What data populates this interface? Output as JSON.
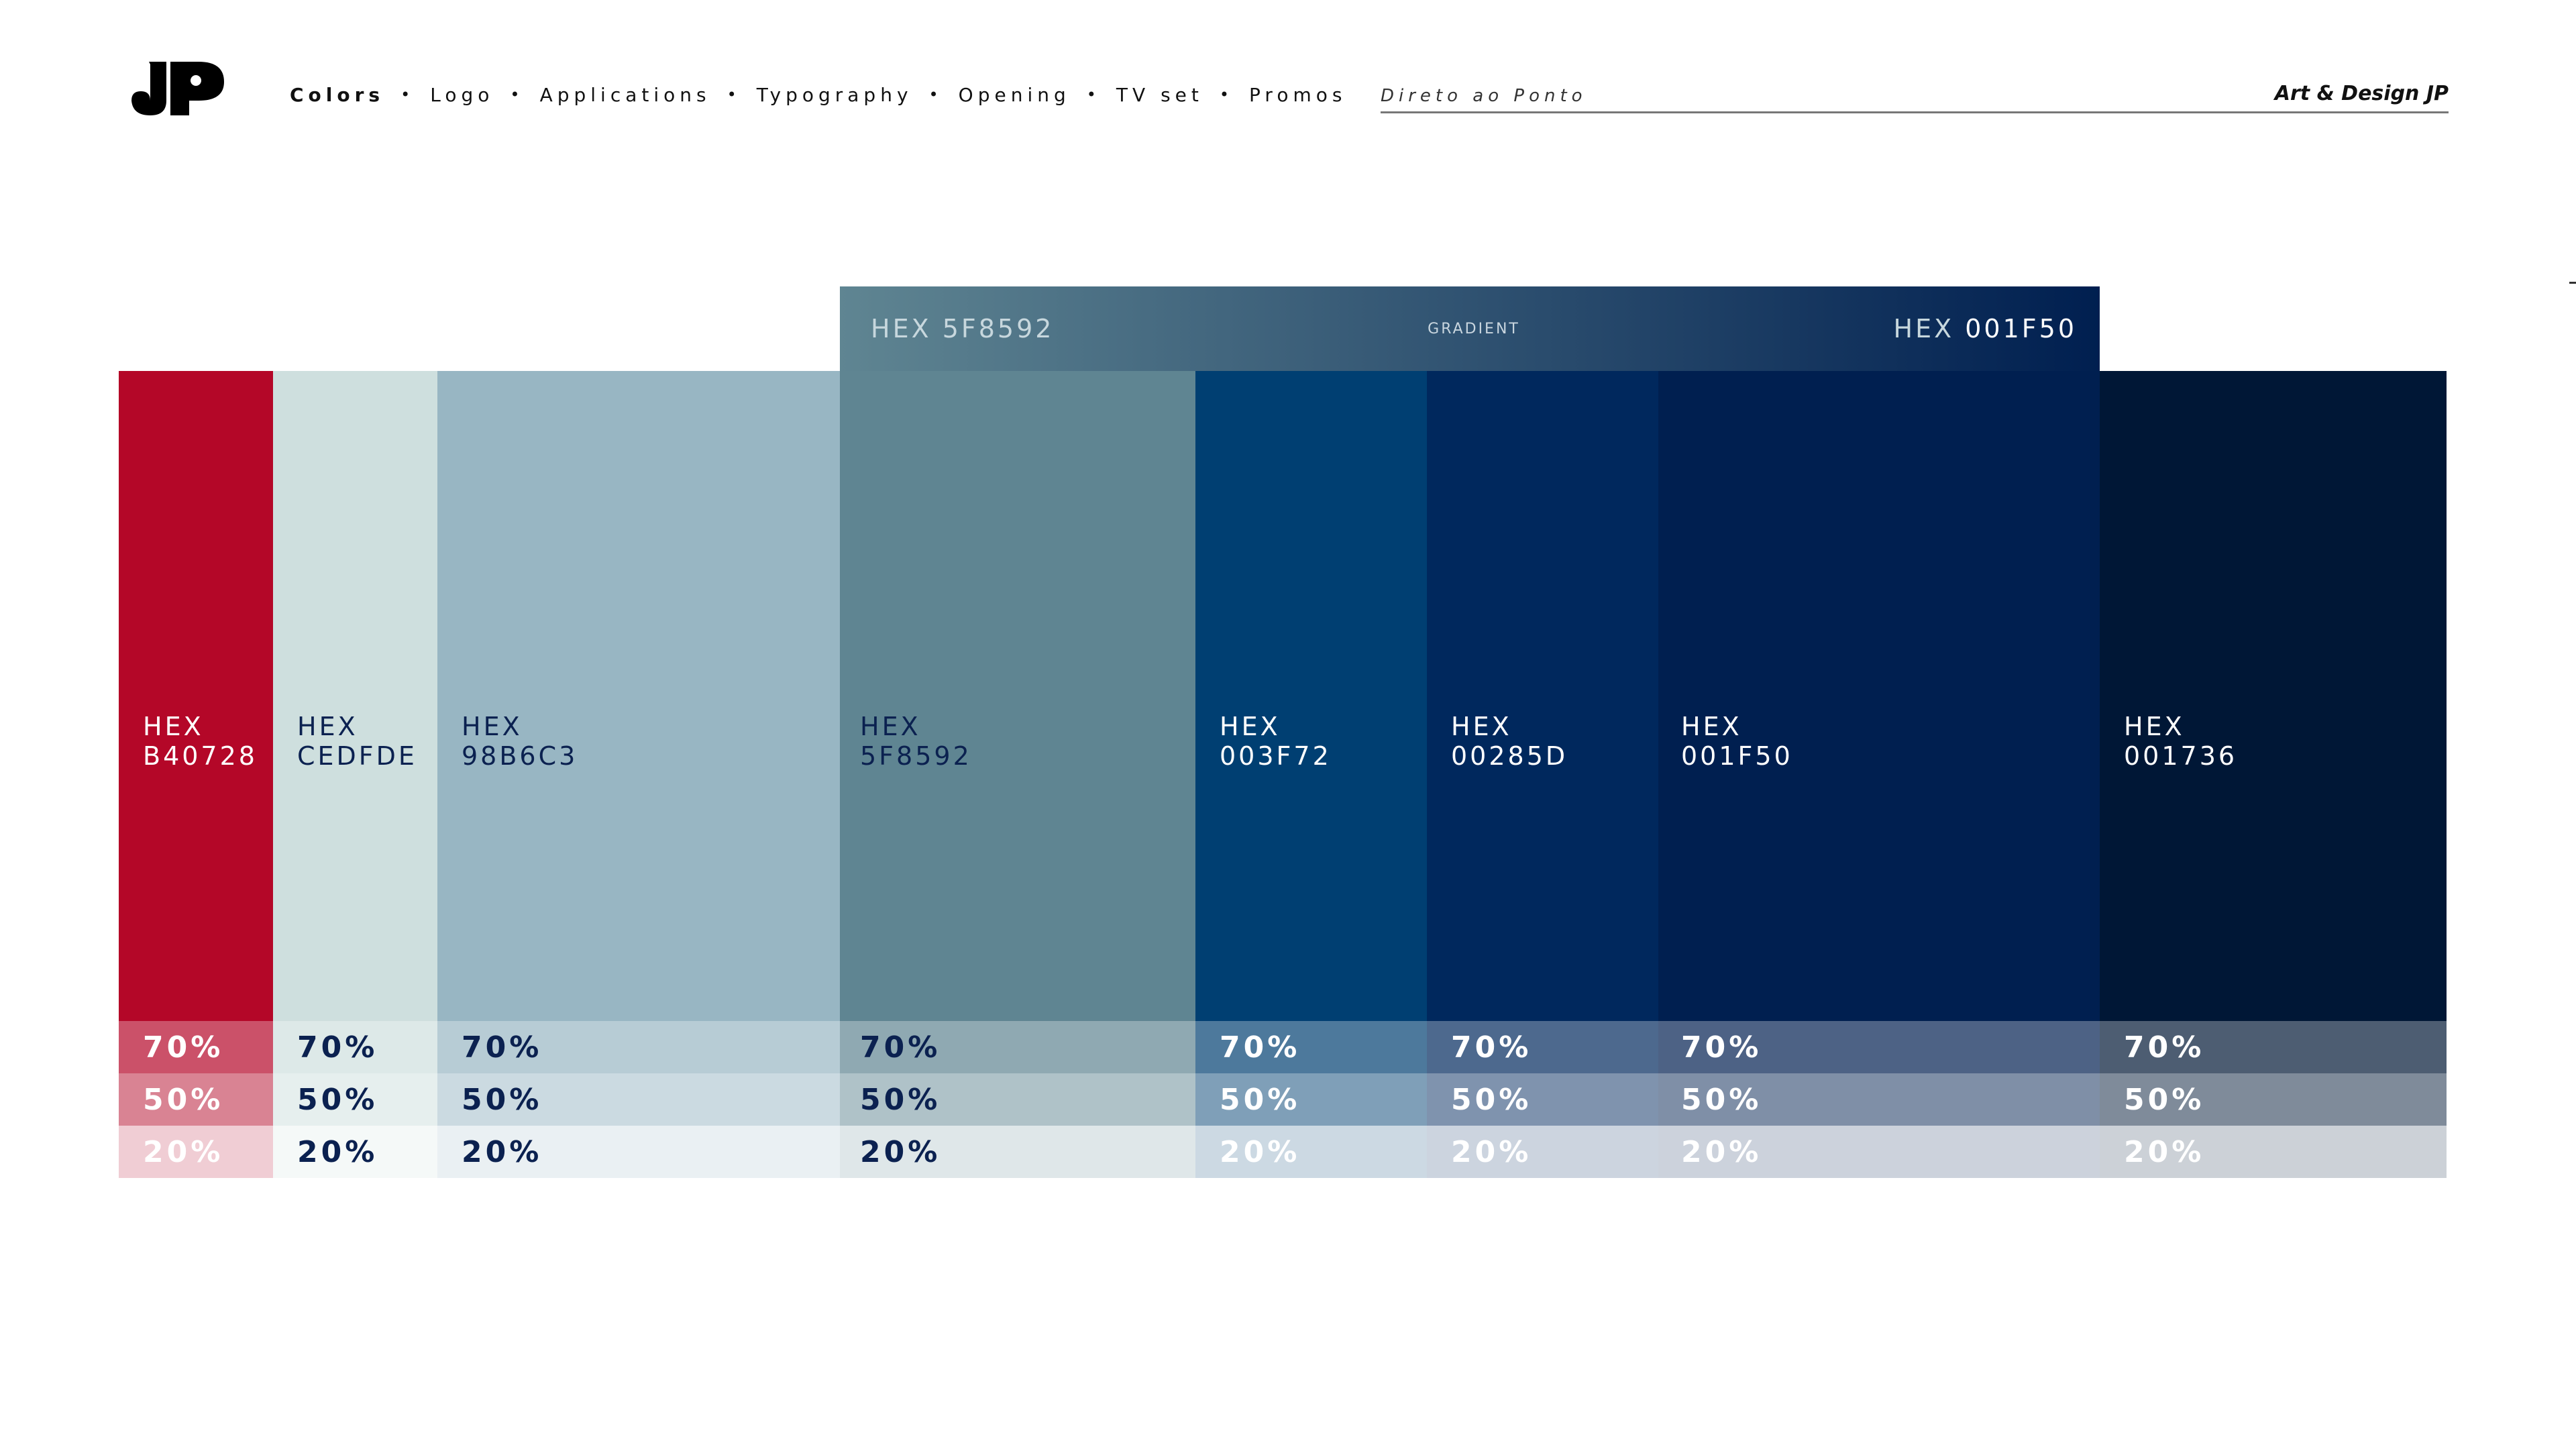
{
  "header": {
    "nav": [
      {
        "label": "Colors",
        "active": true
      },
      {
        "label": "Logo",
        "active": false
      },
      {
        "label": "Applications",
        "active": false
      },
      {
        "label": "Typography",
        "active": false
      },
      {
        "label": "Opening",
        "active": false
      },
      {
        "label": "TV set",
        "active": false
      },
      {
        "label": "Promos",
        "active": false
      }
    ],
    "separator": "•",
    "slogan": "Direto ao Ponto",
    "brand": "Art & Design JP"
  },
  "gradient": {
    "start_prefix": "HEX",
    "start_value": "5F8592",
    "label": "GRADIENT",
    "end_prefix": "HEX",
    "end_value": "001F50",
    "start_color": "#5F8592",
    "end_color": "#001F50"
  },
  "palette": [
    {
      "hex_prefix": "HEX",
      "hex": "B40728",
      "color": "#B40728",
      "text_color": "#ffffff",
      "tints": [
        {
          "label": "70%",
          "bg": "#CB5169",
          "fg": "#ffffff"
        },
        {
          "label": "50%",
          "bg": "#D98393",
          "fg": "#ffffff"
        },
        {
          "label": "20%",
          "bg": "#F0CDD4",
          "fg": "#ffffff"
        }
      ]
    },
    {
      "hex_prefix": "HEX",
      "hex": "CEDFDE",
      "color": "#CEDFDE",
      "text_color": "#0b2150",
      "tints": [
        {
          "label": "70%",
          "bg": "#DDE9E8",
          "fg": "#0b2150"
        },
        {
          "label": "50%",
          "bg": "#E6EFEE",
          "fg": "#0b2150"
        },
        {
          "label": "20%",
          "bg": "#F5F9F8",
          "fg": "#0b2150"
        }
      ]
    },
    {
      "hex_prefix": "HEX",
      "hex": "98B6C3",
      "color": "#98B6C3",
      "text_color": "#0b2150",
      "tints": [
        {
          "label": "70%",
          "bg": "#B7CCD5",
          "fg": "#0b2150"
        },
        {
          "label": "50%",
          "bg": "#CBDAE1",
          "fg": "#0b2150"
        },
        {
          "label": "20%",
          "bg": "#EAF0F3",
          "fg": "#0b2150"
        }
      ]
    },
    {
      "hex_prefix": "HEX",
      "hex": "5F8592",
      "color": "#5F8592",
      "text_color": "#0b2150",
      "tints": [
        {
          "label": "70%",
          "bg": "#8FA9B2",
          "fg": "#0b2150"
        },
        {
          "label": "50%",
          "bg": "#AFC2C8",
          "fg": "#0b2150"
        },
        {
          "label": "20%",
          "bg": "#DFE7E9",
          "fg": "#0b2150"
        }
      ]
    },
    {
      "hex_prefix": "HEX",
      "hex": "003F72",
      "color": "#003F72",
      "text_color": "#ffffff",
      "tints": [
        {
          "label": "70%",
          "bg": "#4D799C",
          "fg": "#ffffff"
        },
        {
          "label": "50%",
          "bg": "#7F9FB8",
          "fg": "#ffffff"
        },
        {
          "label": "20%",
          "bg": "#CCD9E3",
          "fg": "#ffffff"
        }
      ]
    },
    {
      "hex_prefix": "HEX",
      "hex": "00285D",
      "color": "#00285D",
      "text_color": "#ffffff",
      "tints": [
        {
          "label": "70%",
          "bg": "#4D698E",
          "fg": "#ffffff"
        },
        {
          "label": "50%",
          "bg": "#7F93AE",
          "fg": "#ffffff"
        },
        {
          "label": "20%",
          "bg": "#CCD4DF",
          "fg": "#ffffff"
        }
      ]
    },
    {
      "hex_prefix": "HEX",
      "hex": "001F50",
      "color": "#001F50",
      "text_color": "#ffffff",
      "tints": [
        {
          "label": "70%",
          "bg": "#4D6285",
          "fg": "#ffffff"
        },
        {
          "label": "50%",
          "bg": "#7F8FA7",
          "fg": "#ffffff"
        },
        {
          "label": "20%",
          "bg": "#CCD2DC",
          "fg": "#ffffff"
        }
      ]
    },
    {
      "hex_prefix": "HEX",
      "hex": "001736",
      "color": "#001736",
      "text_color": "#ffffff",
      "tints": [
        {
          "label": "70%",
          "bg": "#4D5D72",
          "fg": "#ffffff"
        },
        {
          "label": "50%",
          "bg": "#7F8B9A",
          "fg": "#ffffff"
        },
        {
          "label": "20%",
          "bg": "#CCD1D7",
          "fg": "#ffffff"
        }
      ]
    }
  ]
}
